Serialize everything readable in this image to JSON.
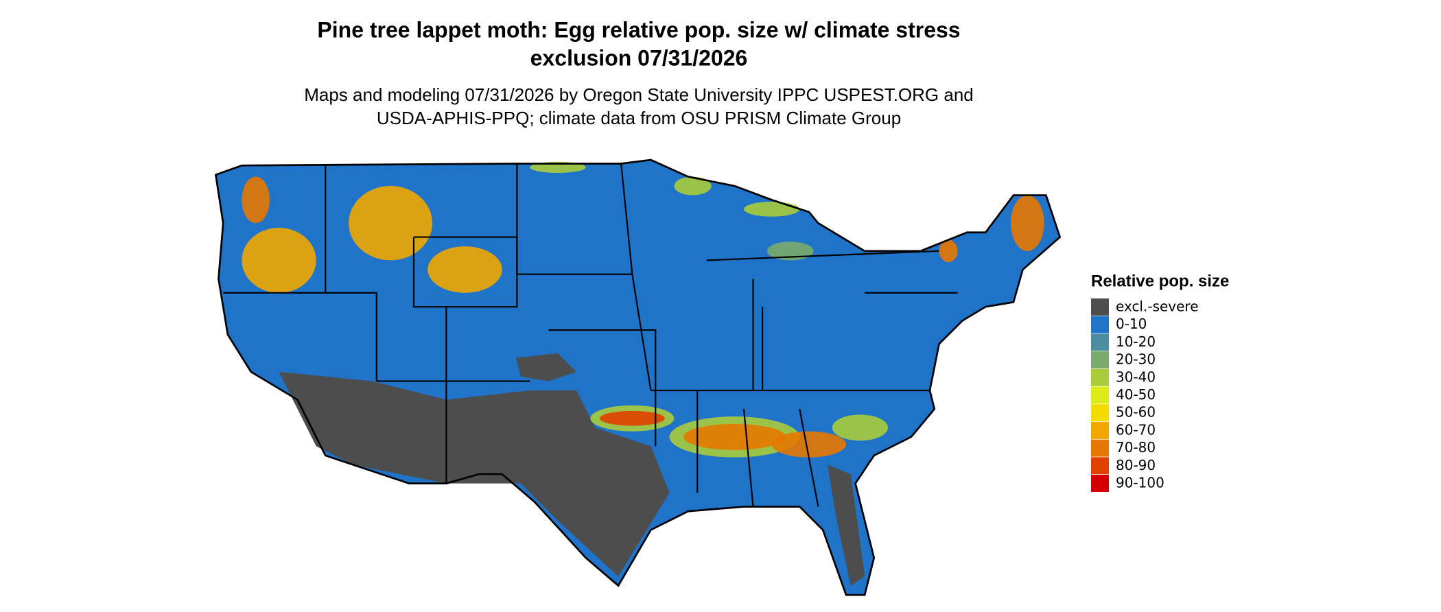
{
  "map": {
    "title": [
      "Pine tree lappet moth: Egg relative pop. size w/ climate stress",
      "exclusion 07/31/2026"
    ],
    "subtitle": [
      "Maps and modeling 07/31/2026 by Oregon State University IPPC USPEST.ORG and",
      "USDA-APHIS-PPQ; climate data from OSU PRISM Climate Group"
    ],
    "legend": {
      "title": "Relative pop. size",
      "items": [
        {
          "label": "excl.-severe",
          "color": "#4d4d4d"
        },
        {
          "label": "0-10",
          "color": "#1f73c9"
        },
        {
          "label": "10-20",
          "color": "#4a8ea0"
        },
        {
          "label": "20-30",
          "color": "#7aab6a"
        },
        {
          "label": "30-40",
          "color": "#a9cc3c"
        },
        {
          "label": "40-50",
          "color": "#dcec1a"
        },
        {
          "label": "50-60",
          "color": "#f5dc00"
        },
        {
          "label": "60-70",
          "color": "#f0a800"
        },
        {
          "label": "70-80",
          "color": "#e67800"
        },
        {
          "label": "80-90",
          "color": "#e04000"
        },
        {
          "label": "90-100",
          "color": "#d40000"
        }
      ]
    }
  }
}
